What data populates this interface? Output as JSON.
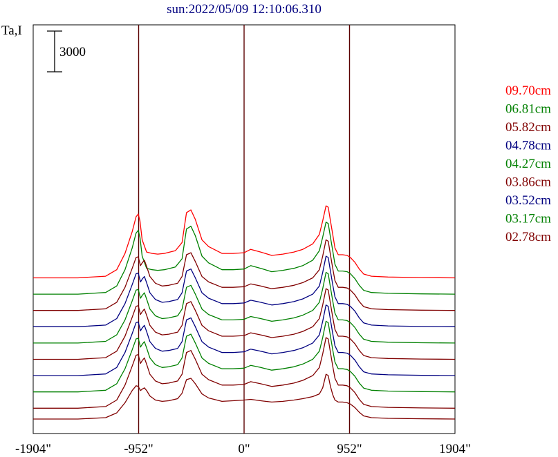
{
  "chart_data": {
    "type": "line",
    "title": "sun:2022/05/09 12:10:06.310",
    "ylabel": "Ta,I",
    "scale_bar_label": "3000",
    "scale_bar_value": 3000,
    "x_ticks": [
      -1904,
      -952,
      0,
      952,
      1904
    ],
    "x_tick_labels": [
      "-1904\"",
      "-952\"",
      "0\"",
      "952\"",
      "1904\""
    ],
    "xlim": [
      -1904,
      1904
    ],
    "reference_lines_x": [
      -952,
      0,
      952
    ],
    "grid": false,
    "legend_position": "right",
    "series": [
      {
        "name": "09.70cm",
        "color": "#ff0000",
        "baseline": 10400,
        "profile": "a"
      },
      {
        "name": "06.81cm",
        "color": "#008000",
        "baseline": 9200,
        "profile": "a"
      },
      {
        "name": "05.82cm",
        "color": "#800000",
        "baseline": 8000,
        "profile": "b"
      },
      {
        "name": "04.78cm",
        "color": "#000080",
        "baseline": 6800,
        "profile": "b"
      },
      {
        "name": "04.27cm",
        "color": "#008000",
        "baseline": 5600,
        "profile": "b"
      },
      {
        "name": "03.86cm",
        "color": "#800000",
        "baseline": 4400,
        "profile": "b"
      },
      {
        "name": "03.52cm",
        "color": "#000080",
        "baseline": 3200,
        "profile": "b"
      },
      {
        "name": "03.17cm",
        "color": "#008000",
        "baseline": 2000,
        "profile": "b"
      },
      {
        "name": "02.78cm",
        "color": "#800000",
        "baseline": 800,
        "profile": "b"
      }
    ],
    "extra_traces": [
      {
        "color": "#800000",
        "baseline": 0,
        "profile": "c"
      }
    ],
    "profiles": {
      "a": {
        "x": [
          -1904,
          -1500,
          -1250,
          -1150,
          -1075,
          -1010,
          -975,
          -955,
          -940,
          -920,
          -880,
          -830,
          -780,
          -720,
          -620,
          -560,
          -520,
          -480,
          -440,
          -380,
          -320,
          -200,
          -100,
          0,
          60,
          150,
          250,
          350,
          450,
          530,
          620,
          680,
          710,
          740,
          760,
          780,
          800,
          820,
          850,
          890,
          930,
          960,
          1000,
          1040,
          1080,
          1150,
          1300,
          1600,
          1904
        ],
        "y": [
          0,
          0,
          120,
          600,
          1800,
          3400,
          4500,
          4700,
          4200,
          2800,
          1900,
          1800,
          1750,
          1800,
          2000,
          2600,
          4800,
          5000,
          4300,
          2800,
          2300,
          1800,
          1800,
          1850,
          2100,
          1900,
          1650,
          1750,
          1900,
          2100,
          2500,
          3200,
          4200,
          5300,
          5200,
          4200,
          3200,
          2200,
          1700,
          1700,
          1650,
          1500,
          1150,
          650,
          280,
          120,
          60,
          20,
          0
        ]
      },
      "b": {
        "x": [
          -1904,
          -1500,
          -1250,
          -1150,
          -1075,
          -1010,
          -975,
          -955,
          -935,
          -920,
          -900,
          -880,
          -850,
          -800,
          -740,
          -680,
          -600,
          -560,
          -520,
          -480,
          -440,
          -380,
          -320,
          -200,
          -100,
          0,
          60,
          150,
          250,
          350,
          450,
          530,
          620,
          680,
          710,
          740,
          760,
          780,
          800,
          820,
          850,
          890,
          930,
          960,
          1000,
          1040,
          1080,
          1150,
          1300,
          1600,
          1904
        ],
        "y": [
          0,
          0,
          120,
          600,
          1700,
          3100,
          3900,
          3950,
          3300,
          3500,
          3700,
          3250,
          2500,
          2000,
          1800,
          1850,
          2000,
          2500,
          4100,
          4250,
          3600,
          2500,
          2100,
          1700,
          1700,
          1750,
          1950,
          1800,
          1600,
          1700,
          1850,
          2050,
          2400,
          3000,
          4000,
          5200,
          5100,
          4100,
          3100,
          2200,
          1700,
          1700,
          1650,
          1500,
          1150,
          650,
          280,
          120,
          60,
          20,
          0
        ]
      },
      "c": {
        "x": [
          -1904,
          -1500,
          -1250,
          -1150,
          -1075,
          -1010,
          -975,
          -955,
          -935,
          -920,
          -900,
          -880,
          -850,
          -800,
          -740,
          -680,
          -600,
          -560,
          -520,
          -480,
          -440,
          -380,
          -320,
          -200,
          -100,
          0,
          60,
          150,
          250,
          350,
          450,
          530,
          620,
          680,
          710,
          740,
          760,
          780,
          800,
          820,
          850,
          890,
          930,
          960,
          1000,
          1040,
          1080,
          1150,
          1300,
          1600,
          1904
        ],
        "y": [
          0,
          0,
          100,
          450,
          1200,
          2100,
          2450,
          2400,
          2100,
          2200,
          2300,
          2100,
          1700,
          1400,
          1300,
          1350,
          1500,
          1900,
          2900,
          3000,
          2600,
          1850,
          1550,
          1300,
          1350,
          1400,
          1450,
          1350,
          1250,
          1300,
          1400,
          1500,
          1650,
          1850,
          2300,
          3300,
          3200,
          2400,
          1800,
          1400,
          1250,
          1250,
          1200,
          1100,
          850,
          500,
          230,
          100,
          50,
          20,
          0
        ]
      }
    }
  }
}
